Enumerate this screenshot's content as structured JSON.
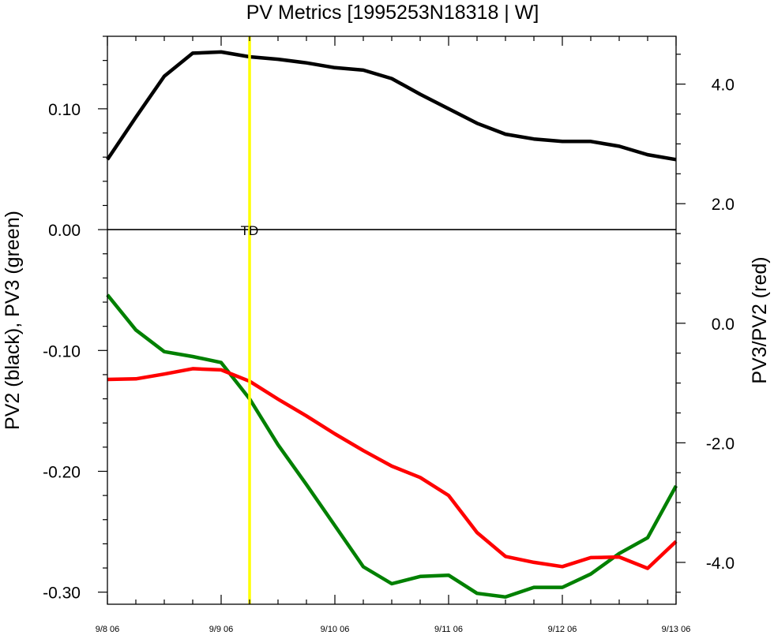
{
  "chart_data": {
    "type": "line",
    "title": "PV Metrics [1995253N18318 | W]",
    "ylabel_left": "PV2 (black), PV3 (green)",
    "ylabel_right": "PV3/PV2 (red)",
    "x_tick_labels": [
      "9/8 06",
      "9/9 06",
      "9/10 06",
      "9/11 06",
      "9/12 06",
      "9/13 06"
    ],
    "x_tick_positions": [
      0,
      24,
      48,
      72,
      96,
      120
    ],
    "xlim": [
      0,
      120
    ],
    "ylim_left": [
      -0.31,
      0.16
    ],
    "ylim_right": [
      -4.7,
      4.8
    ],
    "left_ticks": [
      {
        "value": 0.1,
        "label": "0.10"
      },
      {
        "value": 0.0,
        "label": "0.00"
      },
      {
        "value": -0.1,
        "label": "-0.10"
      },
      {
        "value": -0.2,
        "label": "-0.20"
      },
      {
        "value": -0.3,
        "label": "-0.30"
      }
    ],
    "right_ticks": [
      {
        "value": 4.0,
        "label": "4.0"
      },
      {
        "value": 2.0,
        "label": "2.0"
      },
      {
        "value": 0.0,
        "label": "0.0"
      },
      {
        "value": -2.0,
        "label": "-2.0"
      },
      {
        "value": -4.0,
        "label": "-4.0"
      }
    ],
    "zero_line": 0.0,
    "vertical_marker": {
      "x": 30,
      "label": "TD",
      "color": "#ffff00"
    },
    "x": [
      0,
      6,
      12,
      18,
      24,
      30,
      36,
      42,
      48,
      54,
      60,
      66,
      72,
      78,
      84,
      90,
      96,
      102,
      108,
      114,
      120
    ],
    "series": [
      {
        "name": "PV2",
        "axis": "left",
        "color": "#000000",
        "values": [
          0.058,
          0.093,
          0.127,
          0.146,
          0.147,
          0.143,
          0.141,
          0.138,
          0.134,
          0.132,
          0.125,
          0.112,
          0.1,
          0.088,
          0.079,
          0.075,
          0.073,
          0.073,
          0.069,
          0.062,
          0.058
        ]
      },
      {
        "name": "PV3",
        "axis": "left",
        "color": "#008000",
        "values": [
          -0.054,
          -0.083,
          -0.101,
          -0.105,
          -0.11,
          -0.14,
          -0.178,
          -0.211,
          -0.245,
          -0.279,
          -0.293,
          -0.287,
          -0.286,
          -0.301,
          -0.304,
          -0.296,
          -0.296,
          -0.285,
          -0.268,
          -0.255,
          -0.212
        ]
      },
      {
        "name": "PV3/PV2",
        "axis": "right",
        "color": "#ff0000",
        "values": [
          -0.94,
          -0.93,
          -0.85,
          -0.76,
          -0.78,
          -0.97,
          -1.27,
          -1.55,
          -1.85,
          -2.13,
          -2.39,
          -2.58,
          -2.88,
          -3.5,
          -3.9,
          -4.0,
          -4.07,
          -3.92,
          -3.91,
          -4.1,
          -3.65
        ]
      }
    ]
  }
}
